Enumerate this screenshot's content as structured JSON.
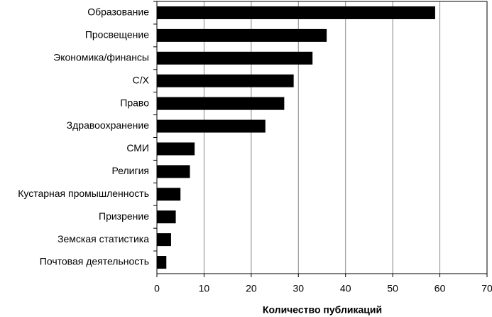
{
  "chart_data": {
    "type": "barh",
    "categories": [
      "Образование",
      "Просвещение",
      "Экономика/финансы",
      "С/Х",
      "Право",
      "Здравоохранение",
      "СМИ",
      "Религия",
      "Кустарная промышленность",
      "Призрение",
      "Земская статистика",
      "Почтовая деятельность"
    ],
    "values": [
      59,
      36,
      33,
      29,
      27,
      23,
      8,
      7,
      5,
      4,
      3,
      2
    ],
    "color": "#000000",
    "xlabel": "Количество публикаций",
    "xlim": [
      0,
      70
    ],
    "xticks": [
      0,
      10,
      20,
      30,
      40,
      50,
      60,
      70
    ],
    "grid": true
  }
}
